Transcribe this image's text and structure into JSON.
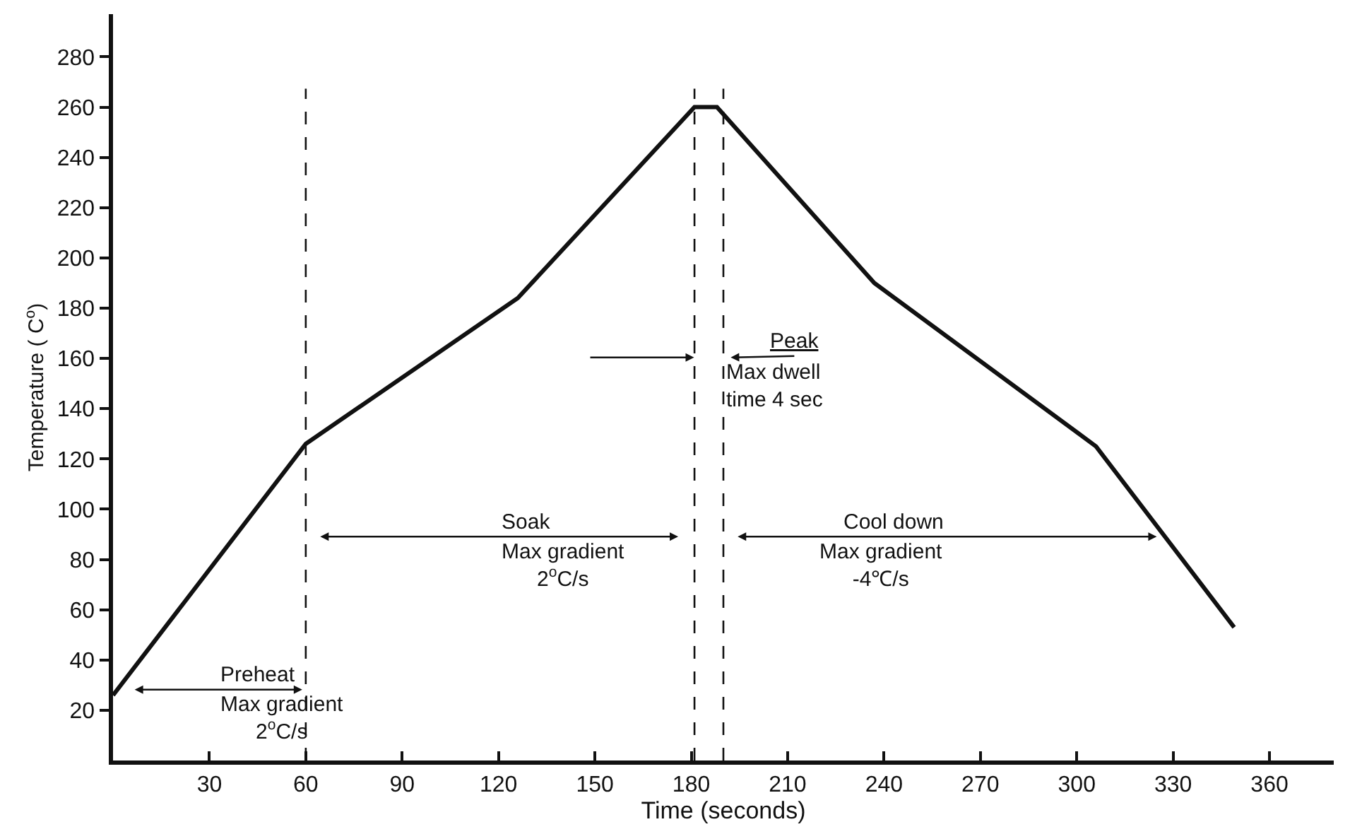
{
  "chart_data": {
    "type": "line",
    "xlabel": "Time (seconds)",
    "ylabel": "Temperature ( C$^{o}$)",
    "x": [
      0,
      60,
      126,
      181,
      188,
      237,
      306,
      349
    ],
    "series": [
      {
        "color": "#111111",
        "values": [
          26,
          126,
          184,
          260,
          260,
          190,
          125,
          53
        ]
      }
    ],
    "xlim": [
      0,
      380
    ],
    "xticks": [
      30,
      60,
      90,
      120,
      150,
      180,
      210,
      240,
      270,
      300,
      330,
      360
    ],
    "ylim": [
      0,
      297
    ],
    "yticks": [
      20,
      40,
      60,
      80,
      100,
      120,
      140,
      160,
      180,
      200,
      220,
      240,
      260,
      280
    ],
    "marker": "none",
    "line_style": "solid",
    "ref_lines": [
      {
        "axis": "x",
        "value": 60,
        "line_style": "dashed",
        "color": "#111111"
      },
      {
        "axis": "x",
        "value": 181,
        "line_style": "dashed",
        "color": "#111111"
      },
      {
        "axis": "x",
        "value": 190,
        "line_style": "dashed",
        "color": "#111111"
      }
    ],
    "annotations": [
      "Preheat\nMax gradient\n2$^{o}$C/s",
      "Soak\nMax gradient\n2$^{o}$C/s",
      "Peak\nMax dwell\ntime 4 sec",
      "Cool down\nMax gradient\n-4℃/s"
    ]
  }
}
